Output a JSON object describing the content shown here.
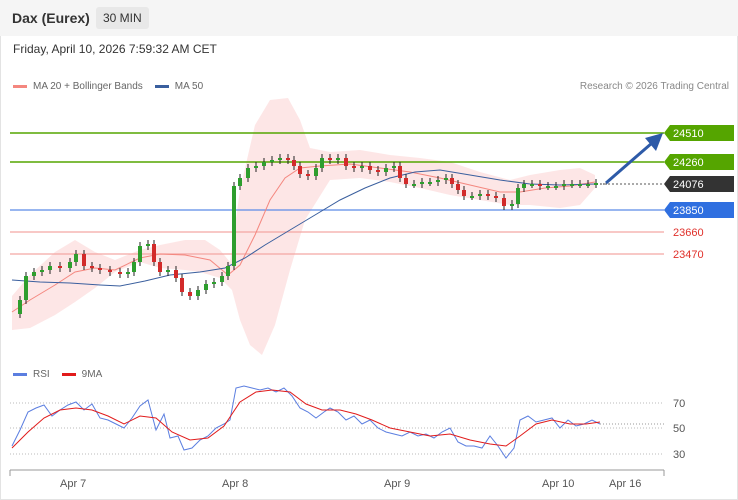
{
  "header": {
    "title": "Dax (Eurex)",
    "interval": "30 MIN"
  },
  "datetime": "Friday, April 10, 2026 7:59:32 AM CET",
  "legend": {
    "ma20": {
      "label": "MA 20 + Bollinger Bands",
      "color": "#f4877f"
    },
    "ma50": {
      "label": "MA 50",
      "color": "#3a5f9e"
    }
  },
  "credit": "Research © 2026 Trading Central",
  "levels": [
    {
      "value": "24510",
      "kind": "resistance",
      "color": "#55a500"
    },
    {
      "value": "24260",
      "kind": "resistance",
      "color": "#55a500"
    },
    {
      "value": "24076",
      "kind": "last",
      "color": "#333333"
    },
    {
      "value": "23850",
      "kind": "pivot",
      "color": "#2f6fe0"
    },
    {
      "value": "23660",
      "kind": "support",
      "color": "#e0302a"
    },
    {
      "value": "23470",
      "kind": "support",
      "color": "#e0302a"
    }
  ],
  "rsi_legend": {
    "rsi": {
      "label": "RSI",
      "color": "#5b7ee0"
    },
    "ma9": {
      "label": "9MA",
      "color": "#e11b1b"
    }
  },
  "rsi_ticks": [
    "70",
    "50",
    "30"
  ],
  "x_labels": [
    "Apr 7",
    "Apr 8",
    "Apr 9",
    "Apr 10",
    "Apr 16"
  ]
}
